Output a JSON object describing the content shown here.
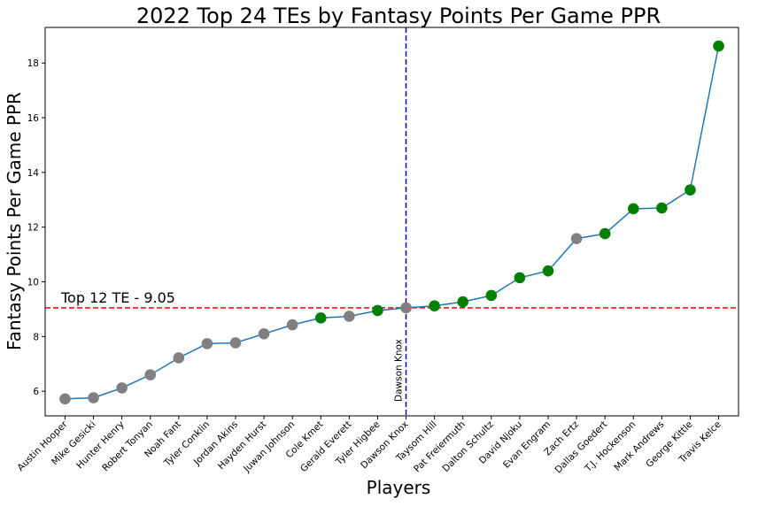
{
  "chart_data": {
    "type": "line",
    "title": "2022 Top 24 TEs by Fantasy Points Per Game PPR",
    "xlabel": "Players",
    "ylabel": "Fantasy Points Per Game PPR",
    "ylim": [
      5.1,
      19.3
    ],
    "yticks": [
      6,
      8,
      10,
      12,
      14,
      16,
      18
    ],
    "grid": false,
    "line_color": "#1f77b4",
    "marker_colors": {
      "gray": "#808080",
      "green": "#008000"
    },
    "points": [
      {
        "player": "Austin Hooper",
        "value": 5.72,
        "marker": "gray"
      },
      {
        "player": "Mike Gesicki",
        "value": 5.76,
        "marker": "gray"
      },
      {
        "player": "Hunter Henry",
        "value": 6.12,
        "marker": "gray"
      },
      {
        "player": "Robert Tonyan",
        "value": 6.6,
        "marker": "gray"
      },
      {
        "player": "Noah Fant",
        "value": 7.22,
        "marker": "gray"
      },
      {
        "player": "Tyler Conklin",
        "value": 7.74,
        "marker": "gray"
      },
      {
        "player": "Jordan Akins",
        "value": 7.77,
        "marker": "gray"
      },
      {
        "player": "Hayden Hurst",
        "value": 8.1,
        "marker": "gray"
      },
      {
        "player": "Juwan Johnson",
        "value": 8.43,
        "marker": "gray"
      },
      {
        "player": "Cole Kmet",
        "value": 8.68,
        "marker": "green"
      },
      {
        "player": "Gerald Everett",
        "value": 8.74,
        "marker": "gray"
      },
      {
        "player": "Tyler Higbee",
        "value": 8.95,
        "marker": "green"
      },
      {
        "player": "Dawson Knox",
        "value": 9.05,
        "marker": "gray"
      },
      {
        "player": "Taysom Hill",
        "value": 9.12,
        "marker": "green"
      },
      {
        "player": "Pat Freiermuth",
        "value": 9.27,
        "marker": "green"
      },
      {
        "player": "Dalton Schultz",
        "value": 9.5,
        "marker": "green"
      },
      {
        "player": "David Njoku",
        "value": 10.15,
        "marker": "green"
      },
      {
        "player": "Evan Engram",
        "value": 10.4,
        "marker": "green"
      },
      {
        "player": "Zach Ertz",
        "value": 11.58,
        "marker": "gray"
      },
      {
        "player": "Dallas Goedert",
        "value": 11.76,
        "marker": "green"
      },
      {
        "player": "T.J. Hockenson",
        "value": 12.67,
        "marker": "green"
      },
      {
        "player": "Mark Andrews",
        "value": 12.7,
        "marker": "green"
      },
      {
        "player": "George Kittle",
        "value": 13.36,
        "marker": "green"
      },
      {
        "player": "Travis Kelce",
        "value": 18.62,
        "marker": "green"
      }
    ],
    "reference_lines": {
      "horizontal": {
        "value": 9.05,
        "label": "Top 12 TE - 9.05",
        "color": "#ff0000"
      },
      "vertical": {
        "player": "Dawson Knox",
        "label": "Dawson Knox",
        "color": "#0000cd"
      }
    }
  }
}
